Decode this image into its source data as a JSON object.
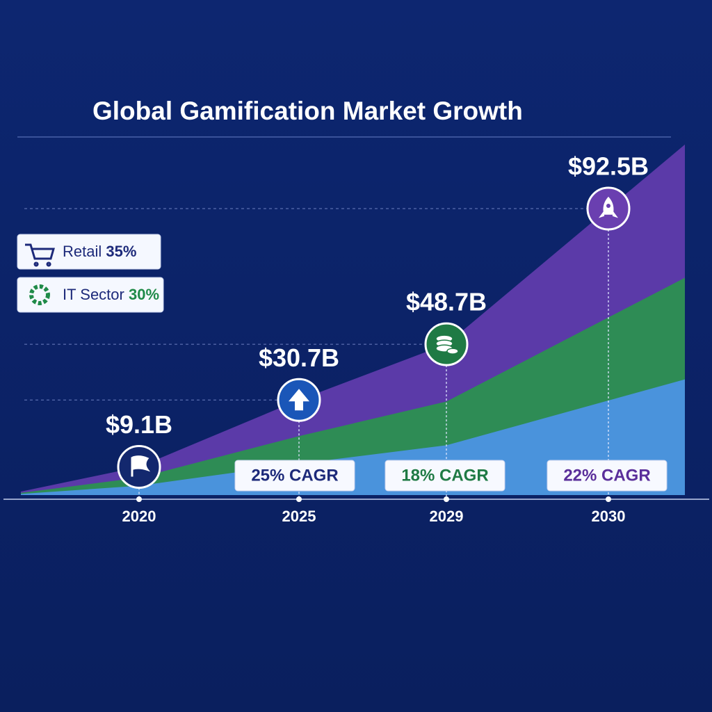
{
  "chart_data": {
    "type": "area",
    "title": "Global Gamification Market Growth",
    "categories": [
      "2020",
      "2025",
      "2029",
      "2030"
    ],
    "values": [
      9.1,
      30.7,
      48.7,
      92.5
    ],
    "value_labels": [
      "$9.1B",
      "$30.7B",
      "$48.7B",
      "$92.5B"
    ],
    "cagr_labels": [
      null,
      "25% CAGR",
      "18% CAGR",
      "22% CAGR"
    ],
    "cagr_colors": [
      null,
      "#1d2a7a",
      "#1f7a44",
      "#5a2e9a"
    ],
    "color": "#5b3aa8",
    "layer_colors": [
      "#2e8c55",
      "#4a93dc"
    ],
    "marker_colors": [
      "#13286e",
      "#1a56b8",
      "#1f7a44",
      "#6a3fb0"
    ],
    "sectors": [
      {
        "name": "Retail",
        "share": "35%",
        "color": "#1d2a7a"
      },
      {
        "name": "IT Sector",
        "share": "30%",
        "color": "#1f8a48"
      }
    ]
  }
}
